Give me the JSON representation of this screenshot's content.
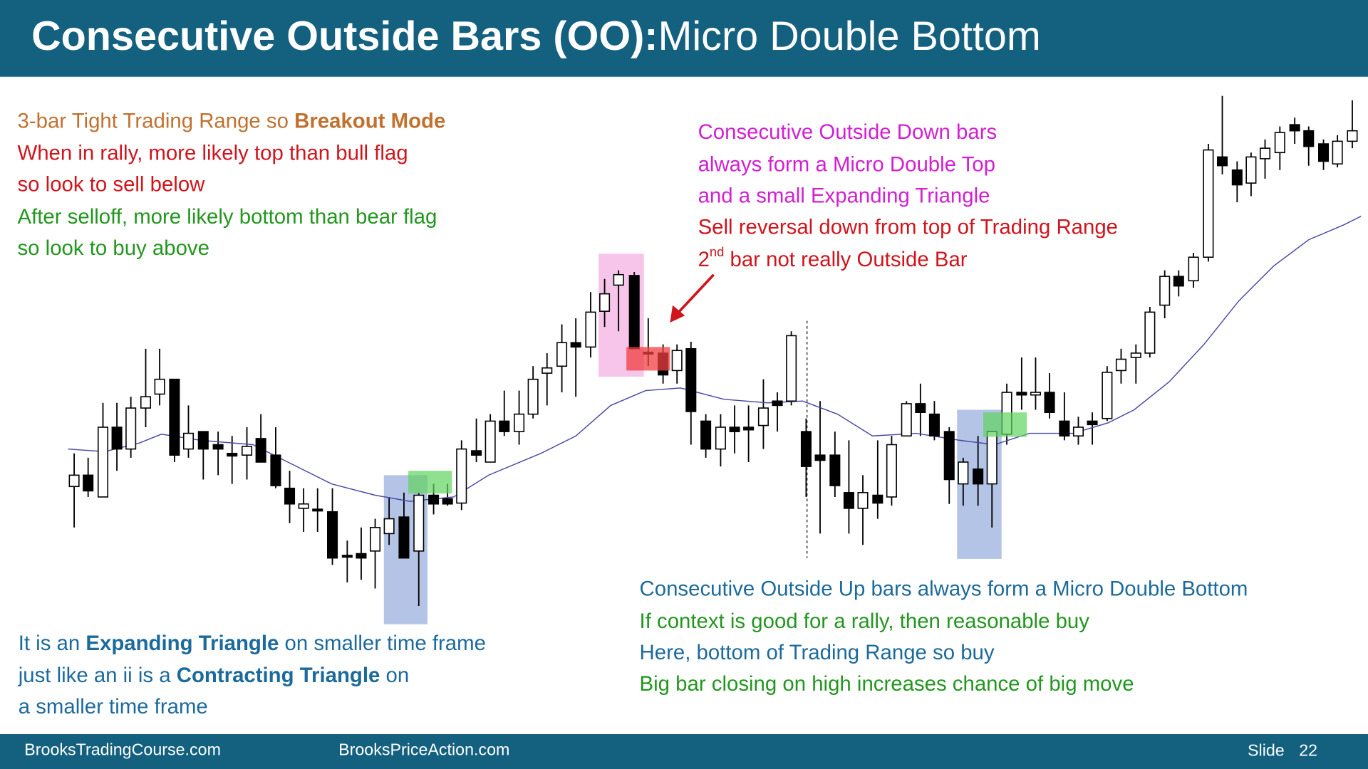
{
  "header": {
    "title_bold": "Consecutive Outside Bars (OO):",
    "title_rest": "Micro Double Bottom"
  },
  "note_top_left": {
    "line1": [
      "3-bar Tight Trading Range so ",
      "Breakout Mode"
    ],
    "line2": "When in rally, more likely top than bull flag",
    "line3": "so look to sell below",
    "line4": "After selloff, more likely bottom than bear flag",
    "line5": "so look to buy above"
  },
  "note_top_middle": {
    "line1": "Consecutive Outside Down bars",
    "line2": "always form a Micro Double Top",
    "line3": "and a small Expanding Triangle",
    "line4": "Sell reversal down from top of Trading Range",
    "line5": [
      "2",
      "nd",
      " bar not really Outside Bar"
    ]
  },
  "note_bottom_right": {
    "line1": "Consecutive Outside Up bars always form a Micro Double Bottom",
    "line2": "If context is good for a rally, then reasonable buy",
    "line3": "Here, bottom of Trading Range so buy",
    "line4": "Big bar closing on high increases chance of big move"
  },
  "note_bottom_left": {
    "line1": [
      "It is an ",
      "Expanding Triangle",
      " on smaller time frame"
    ],
    "line2": [
      "just like an ii is a ",
      "Contracting Triangle",
      " on"
    ],
    "line3": "a smaller time frame"
  },
  "footer": {
    "site1": "BrooksTradingCourse.com",
    "site2": "BrooksPriceAction.com",
    "slide_label": "Slide",
    "slide_number": "22"
  }
}
